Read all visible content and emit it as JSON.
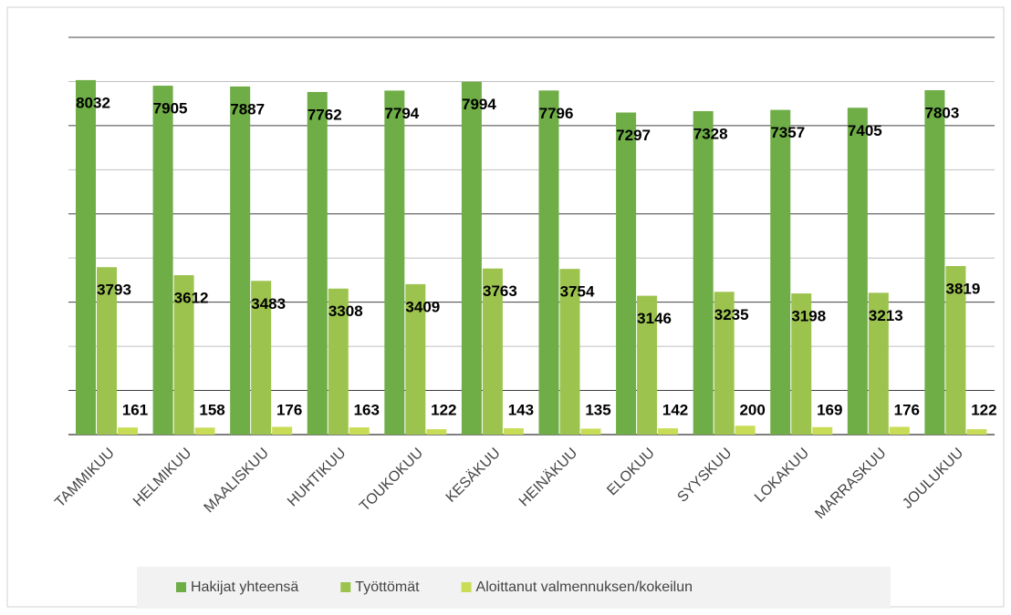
{
  "chart_data": {
    "type": "bar",
    "categories": [
      "TAMMIKUU",
      "HELMIKUU",
      "MAALISKUU",
      "HUHTIKUU",
      "TOUKOKUU",
      "KESÄKUU",
      "HEINÄKUU",
      "ELOKUU",
      "SYYSKUU",
      "LOKAKUU",
      "MARRASKUU",
      "JOULUKUU"
    ],
    "series": [
      {
        "name": "Hakijat yhteensä",
        "color": "#6fad47",
        "values": [
          8032,
          7905,
          7887,
          7762,
          7794,
          7994,
          7796,
          7297,
          7328,
          7357,
          7405,
          7803
        ]
      },
      {
        "name": "Työttömät",
        "color": "#9dc34f",
        "values": [
          3793,
          3612,
          3483,
          3308,
          3409,
          3763,
          3754,
          3146,
          3235,
          3198,
          3213,
          3819
        ]
      },
      {
        "name": "Aloittanut valmennuksen/kokeilun",
        "color": "#c8dc55",
        "values": [
          161,
          158,
          176,
          163,
          122,
          143,
          135,
          142,
          200,
          169,
          176,
          122
        ]
      }
    ],
    "ylim": [
      0,
      9000
    ],
    "yticks": [
      0,
      1000,
      2000,
      3000,
      4000,
      5000,
      6000,
      7000,
      8000,
      9000
    ],
    "grid": true,
    "legend": "bottom"
  }
}
